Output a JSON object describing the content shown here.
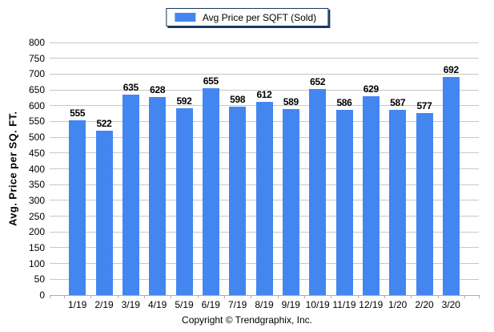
{
  "chart_data": {
    "type": "bar",
    "title": "",
    "legend": "Avg Price per SQFT (Sold)",
    "legend_position": "top-center",
    "categories": [
      "1/19",
      "2/19",
      "3/19",
      "4/19",
      "5/19",
      "6/19",
      "7/19",
      "8/19",
      "9/19",
      "10/19",
      "11/19",
      "12/19",
      "1/20",
      "2/20",
      "3/20"
    ],
    "values": [
      555,
      522,
      635,
      628,
      592,
      655,
      598,
      612,
      589,
      652,
      586,
      629,
      587,
      577,
      692
    ],
    "xlabel": "",
    "ylabel": "Avg. Price per SQ. FT.",
    "ylim": [
      0,
      800
    ],
    "ytick_step": 50,
    "grid": "horizontal",
    "value_labels": true,
    "bar_color": "#4386F0",
    "gridline_color": "#C8C8C8",
    "axis_color": "#ADADAD",
    "legend_border_color": "#17375E",
    "text_color": "#000000"
  },
  "footer": {
    "copyright": "Copyright © Trendgraphix, Inc."
  }
}
